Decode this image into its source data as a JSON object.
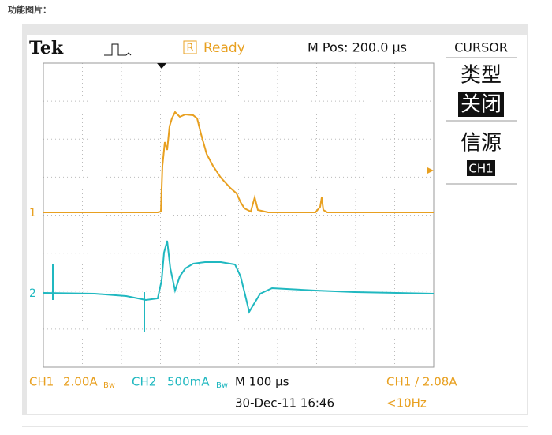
{
  "page_label": "功能图片：",
  "scope": {
    "brand": "Tek",
    "trigger_state": "Ready",
    "trigger_state_icon": "R",
    "position": "M Pos: 200.0 µs",
    "menu": {
      "title": "CURSOR",
      "items": [
        {
          "label": "类型",
          "value": "关闭"
        },
        {
          "label": "信源",
          "value": "CH1"
        }
      ]
    },
    "channel_markers": [
      "1",
      "2"
    ],
    "status": {
      "ch1_name": "CH1",
      "ch1_scale": "2.00A",
      "ch1_bw": "Bw",
      "ch2_name": "CH2",
      "ch2_scale": "500mA",
      "ch2_bw": "Bw",
      "timebase": "M 100 µs",
      "trigger": "CH1 ∕ 2.08A",
      "datetime": "30-Dec-11 16:46",
      "frequency": "<10Hz"
    }
  }
}
